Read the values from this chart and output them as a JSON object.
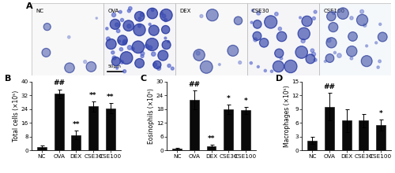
{
  "panel_B": {
    "categories": [
      "NC",
      "OVA",
      "DEX",
      "CSE30",
      "CSE100"
    ],
    "values": [
      2.2,
      33.0,
      9.0,
      25.5,
      24.5
    ],
    "errors": [
      0.5,
      2.5,
      2.5,
      3.0,
      3.0
    ],
    "ylabel": "Total cells (×10⁵)",
    "ylim": [
      0,
      40
    ],
    "yticks": [
      0,
      8,
      16,
      24,
      32,
      40
    ],
    "annotations": {
      "OVA": "##",
      "DEX": "**",
      "CSE30": "**",
      "CSE100": "**"
    },
    "label": "B"
  },
  "panel_C": {
    "categories": [
      "NC",
      "OVA",
      "DEX",
      "CSE30",
      "CSE100"
    ],
    "values": [
      0.8,
      22.0,
      2.0,
      18.0,
      17.5
    ],
    "errors": [
      0.3,
      4.0,
      0.4,
      2.0,
      1.5
    ],
    "ylabel": "Eosinophils (×10⁵)",
    "ylim": [
      0,
      30
    ],
    "yticks": [
      0,
      6,
      12,
      18,
      24,
      30
    ],
    "annotations": {
      "OVA": "##",
      "DEX": "**",
      "CSE30": "*",
      "CSE100": "*"
    },
    "label": "C"
  },
  "panel_D": {
    "categories": [
      "NC",
      "OVA",
      "DEX",
      "CSE30",
      "CSE100"
    ],
    "values": [
      2.2,
      9.5,
      6.5,
      6.5,
      5.5
    ],
    "errors": [
      0.7,
      3.0,
      2.5,
      1.5,
      1.2
    ],
    "ylabel": "Macrophages (×10⁵)",
    "ylim": [
      0,
      15
    ],
    "yticks": [
      0,
      3,
      6,
      9,
      12,
      15
    ],
    "annotations": {
      "OVA": "##",
      "CSE100": "*"
    },
    "label": "D"
  },
  "bar_color": "#0a0a0a",
  "bar_width": 0.55,
  "font_size": 5.5,
  "label_fontsize": 8,
  "annot_fontsize": 6.5,
  "tick_fontsize": 5.2,
  "image_panel_label": "A",
  "panel_A_labels": [
    "NC",
    "OVA",
    "DEX",
    "CSE30",
    "CSE100"
  ],
  "panel_A_bg": [
    "#f8f8f8",
    "#f5f5f8",
    "#f8f8f8",
    "#f5f5f8",
    "#f5f8fb"
  ],
  "scale_bar_text": "50μm"
}
